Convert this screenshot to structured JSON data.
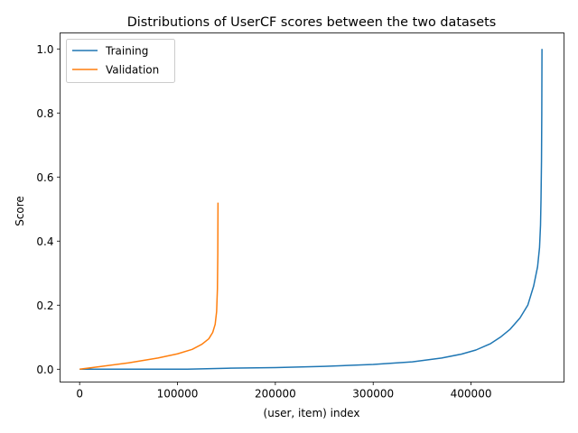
{
  "chart_data": {
    "type": "line",
    "title": "Distributions of UserCF scores between the two datasets",
    "xlabel": "(user, item) index",
    "ylabel": "Score",
    "xlim": [
      -20000,
      495000
    ],
    "ylim": [
      -0.04,
      1.05
    ],
    "xticks": [
      0,
      100000,
      200000,
      300000,
      400000
    ],
    "xtick_labels": [
      "0",
      "100000",
      "200000",
      "300000",
      "400000"
    ],
    "yticks": [
      0.0,
      0.2,
      0.4,
      0.6,
      0.8,
      1.0
    ],
    "ytick_labels": [
      "0.0",
      "0.2",
      "0.4",
      "0.6",
      "0.8",
      "1.0"
    ],
    "grid": false,
    "legend_position": "upper-left",
    "series": [
      {
        "name": "Training",
        "color": "#1f77b4",
        "x": [
          0,
          50000,
          110000,
          150000,
          200000,
          250000,
          300000,
          340000,
          370000,
          390000,
          405000,
          420000,
          430000,
          440000,
          450000,
          458000,
          464000,
          468000,
          470000,
          471000,
          471500,
          472000,
          472300,
          472500
        ],
        "y": [
          0.0,
          0.0,
          0.0,
          0.003,
          0.005,
          0.009,
          0.015,
          0.023,
          0.035,
          0.047,
          0.06,
          0.08,
          0.1,
          0.125,
          0.16,
          0.2,
          0.26,
          0.32,
          0.38,
          0.45,
          0.53,
          0.65,
          0.8,
          1.0
        ]
      },
      {
        "name": "Validation",
        "color": "#ff7f0e",
        "x": [
          0,
          20000,
          50000,
          80000,
          100000,
          115000,
          125000,
          132000,
          136000,
          138500,
          140000,
          140800,
          141200,
          141400
        ],
        "y": [
          0.0,
          0.008,
          0.02,
          0.035,
          0.048,
          0.062,
          0.078,
          0.095,
          0.115,
          0.14,
          0.18,
          0.25,
          0.36,
          0.52
        ]
      }
    ]
  }
}
